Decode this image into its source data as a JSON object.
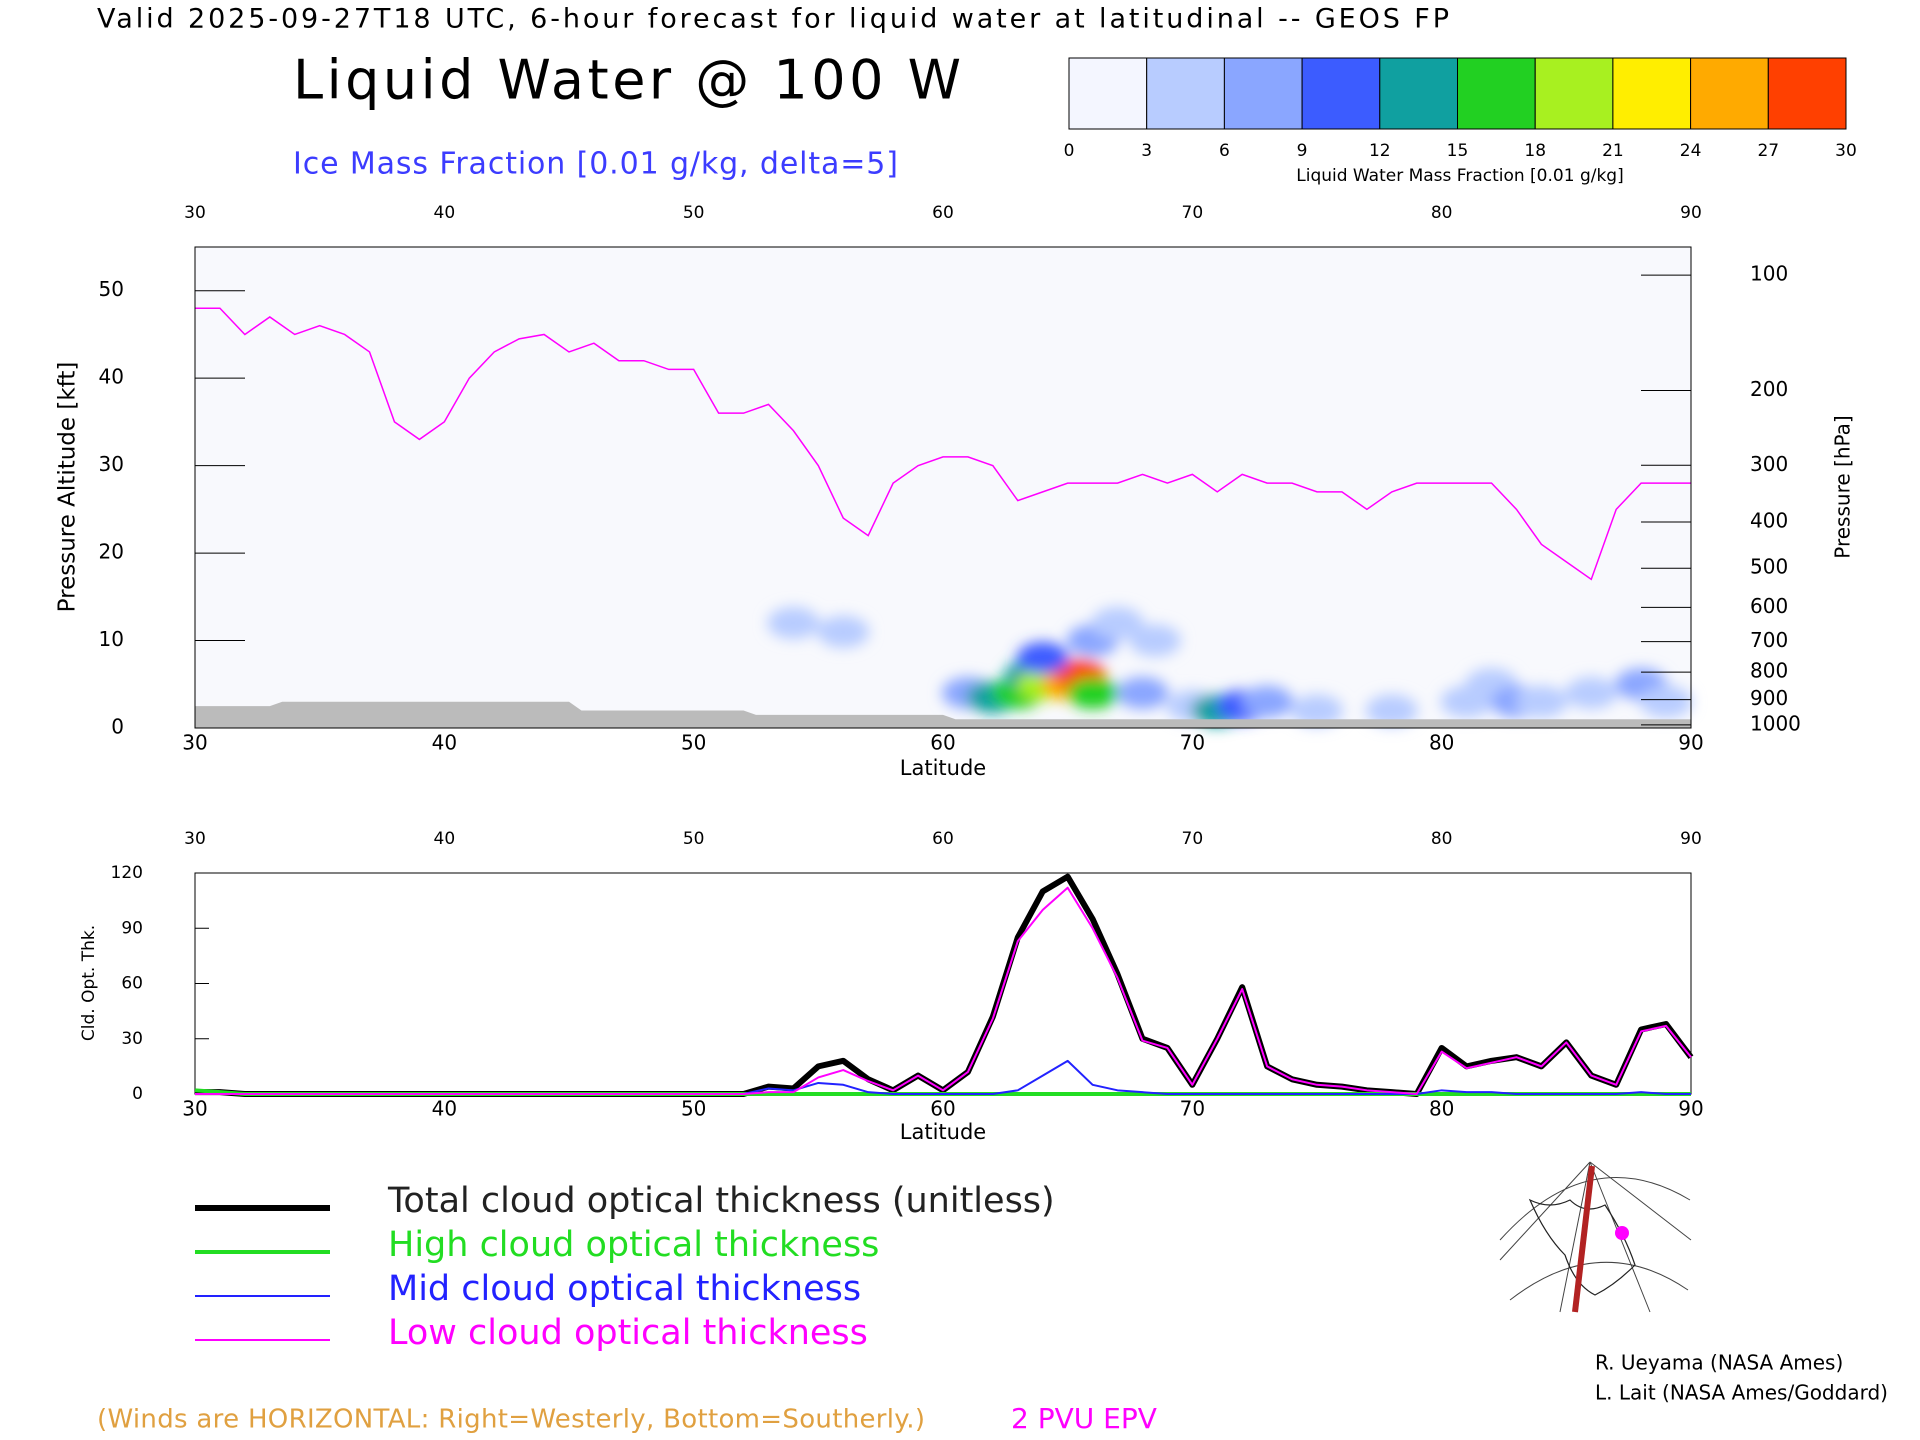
{
  "header": {
    "title": "Valid 2025-09-27T18 UTC, 6-hour forecast for liquid water at latitudinal -- GEOS FP",
    "main_title": "Liquid Water @ 100 W",
    "subtitle": "Ice Mass Fraction [0.01 g/kg, delta=5]"
  },
  "chart_data": [
    {
      "type": "cross-section",
      "x_label": "Latitude",
      "y_label": "Pressure Altitude [kft]",
      "y2_label": "Pressure [hPa]",
      "xlim": [
        30,
        90
      ],
      "xticks": [
        30,
        40,
        50,
        60,
        70,
        80,
        90
      ],
      "ylim": [
        0,
        55
      ],
      "yticks": [
        0,
        10,
        20,
        30,
        40,
        50
      ],
      "y2lim": [
        1013.25,
        83.2
      ],
      "y2scale": "pressure-altitude",
      "y2ticks": [
        100,
        200,
        300,
        400,
        500,
        600,
        700,
        800,
        900,
        1000
      ],
      "colorbar": {
        "label": "Liquid Water Mass Fraction [0.01 g/kg]",
        "ticks": [
          0,
          3,
          6,
          9,
          12,
          15,
          18,
          21,
          24,
          27,
          30
        ],
        "colors": [
          "#f4f6ff",
          "#b8ccff",
          "#8aa6ff",
          "#3c5cff",
          "#10a0a0",
          "#22d022",
          "#a8f020",
          "#ffee00",
          "#ffaa00",
          "#ff4000"
        ]
      },
      "cells": {
        "x": [
          61,
          62,
          63,
          63.5,
          64,
          65,
          65.5,
          66,
          64,
          66,
          67,
          68,
          68.5,
          70,
          71,
          72,
          73,
          75,
          78,
          81,
          82,
          83,
          84,
          86,
          88,
          89,
          54,
          56
        ],
        "y": [
          4,
          3.5,
          4,
          6,
          5,
          5,
          6,
          4,
          8,
          10,
          12,
          4,
          10,
          2.5,
          2,
          2.5,
          3,
          2,
          2,
          3,
          5,
          3,
          3,
          4,
          5,
          3,
          12,
          11
        ],
        "values": [
          8,
          12,
          16,
          14,
          20,
          25,
          27,
          15,
          10,
          8,
          5,
          6,
          5,
          4,
          14,
          10,
          6,
          4,
          4,
          5,
          4,
          6,
          5,
          5,
          8,
          5,
          3,
          3
        ]
      },
      "tropopause": {
        "name": "2 PVU EPV",
        "color": "#ff00ff",
        "x": [
          30,
          31,
          32,
          33,
          34,
          35,
          36,
          37,
          38,
          39,
          40,
          41,
          42,
          43,
          44,
          45,
          46,
          47,
          48,
          49,
          50,
          51,
          52,
          53,
          54,
          55,
          56,
          57,
          58,
          59,
          60,
          61,
          62,
          63,
          64,
          65,
          66,
          67,
          68,
          69,
          70,
          71,
          72,
          73,
          74,
          75,
          76,
          77,
          78,
          79,
          80,
          81,
          82,
          83,
          84,
          85,
          86,
          87,
          88,
          89,
          90
        ],
        "values": [
          48,
          48,
          45,
          47,
          45,
          46,
          45,
          43,
          35,
          33,
          35,
          40,
          43,
          44.5,
          45,
          43,
          44,
          42,
          42,
          41,
          41,
          36,
          36,
          37,
          34,
          30,
          24,
          22,
          28,
          30,
          31,
          31,
          30,
          26,
          27,
          28,
          28,
          28,
          29,
          28,
          29,
          27,
          29,
          28,
          28,
          27,
          27,
          25,
          27,
          28,
          28,
          28,
          28,
          25,
          21,
          19,
          17,
          25,
          28,
          28,
          28
        ]
      },
      "terrain": {
        "color": "#bbbbbb",
        "x": [
          30,
          33,
          33.5,
          45,
          45.5,
          52,
          52.5,
          60,
          60.5,
          90
        ],
        "values": [
          2.5,
          2.5,
          3,
          3,
          2,
          2,
          1.5,
          1.5,
          1,
          1
        ]
      }
    },
    {
      "type": "line",
      "x_label": "Latitude",
      "y_label": "Cld. Opt. Thk.",
      "xlim": [
        30,
        90
      ],
      "xticks": [
        30,
        40,
        50,
        60,
        70,
        80,
        90
      ],
      "ylim": [
        0,
        120
      ],
      "yticks": [
        0,
        30,
        60,
        90,
        120
      ],
      "x": [
        30,
        31,
        32,
        33,
        34,
        35,
        36,
        37,
        38,
        39,
        40,
        41,
        42,
        43,
        44,
        45,
        46,
        47,
        48,
        49,
        50,
        51,
        52,
        53,
        54,
        55,
        56,
        57,
        58,
        59,
        60,
        61,
        62,
        63,
        64,
        65,
        66,
        67,
        68,
        69,
        70,
        71,
        72,
        73,
        74,
        75,
        76,
        77,
        78,
        79,
        80,
        81,
        82,
        83,
        84,
        85,
        86,
        87,
        88,
        89,
        90
      ],
      "series": [
        {
          "name": "Total cloud optical thickness (unitless)",
          "color": "#000000",
          "line_width": 6,
          "values": [
            1,
            1,
            0,
            0,
            0,
            0,
            0,
            0,
            0,
            0,
            0,
            0,
            0,
            0,
            0,
            0,
            0,
            0,
            0,
            0,
            0,
            0,
            0,
            4,
            3,
            15,
            18,
            8,
            2,
            10,
            2,
            12,
            42,
            85,
            110,
            118,
            95,
            65,
            30,
            25,
            5,
            30,
            58,
            15,
            8,
            5,
            4,
            2,
            1,
            0,
            25,
            15,
            18,
            20,
            15,
            28,
            10,
            5,
            35,
            38,
            20
          ]
        },
        {
          "name": "High cloud optical thickness",
          "color": "#22dd22",
          "line_width": 4,
          "values": [
            2,
            1,
            0,
            0,
            0,
            0,
            0,
            0,
            0,
            0,
            0,
            0,
            0,
            0,
            0,
            0,
            0,
            0,
            0,
            0,
            0,
            0,
            0,
            0,
            0,
            0,
            0,
            0,
            0,
            0,
            0,
            0,
            0,
            0,
            0,
            0,
            0,
            0,
            0,
            0,
            0,
            0,
            0,
            0,
            0,
            0,
            0,
            0,
            0,
            0,
            0,
            0,
            0,
            0,
            0,
            0,
            0,
            0,
            0,
            0,
            0
          ]
        },
        {
          "name": "Mid cloud optical thickness",
          "color": "#2222ff",
          "line_width": 2,
          "values": [
            0,
            0,
            0,
            0,
            0,
            0,
            0,
            0,
            0,
            0,
            0,
            0,
            0,
            0,
            0,
            0,
            0,
            0,
            0,
            0,
            0,
            0,
            0,
            3,
            2,
            6,
            5,
            1,
            0,
            0,
            0,
            0,
            0,
            2,
            10,
            18,
            5,
            2,
            1,
            0,
            0,
            0,
            0,
            0,
            0,
            0,
            0,
            0,
            0,
            0,
            2,
            1,
            1,
            0,
            0,
            0,
            0,
            0,
            1,
            0,
            0
          ]
        },
        {
          "name": "Low cloud optical thickness",
          "color": "#ff00ff",
          "line_width": 2,
          "values": [
            0,
            0,
            0,
            0,
            0,
            0,
            0,
            0,
            0,
            0,
            0,
            0,
            0,
            0,
            0,
            0,
            0,
            0,
            0,
            0,
            0,
            0,
            0,
            1,
            1,
            9,
            13,
            7,
            2,
            10,
            2,
            12,
            41,
            83,
            100,
            112,
            90,
            63,
            29,
            25,
            5,
            30,
            57,
            15,
            8,
            5,
            4,
            2,
            1,
            0,
            23,
            14,
            17,
            20,
            15,
            28,
            10,
            5,
            34,
            37,
            20
          ]
        }
      ]
    }
  ],
  "footer": {
    "credits": [
      "R. Ueyama (NASA Ames)",
      "L. Lait (NASA Ames/Goddard)"
    ],
    "note": "(Winds are HORIZONTAL: Right=Westerly, Bottom=Southerly.)"
  }
}
